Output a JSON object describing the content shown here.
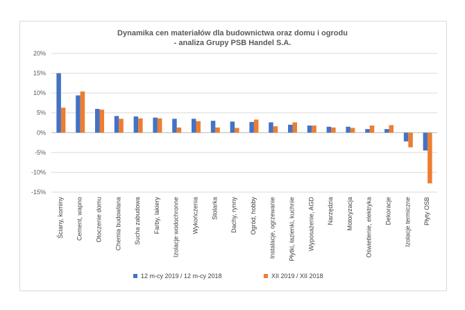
{
  "chart_data": {
    "type": "bar",
    "title_lines": [
      "Dynamika cen materiałów dla budownictwa oraz domu i ogrodu",
      "- analiza Grupy PSB Handel S.A."
    ],
    "categories": [
      "Ściany, kominy",
      "Cement, wapno",
      "Otoczenie domu",
      "Chemia budowlana",
      "Sucha zabudowa",
      "Farby, lakiery",
      "Izolacje wodochronne",
      "Wykończenia",
      "Stolarka",
      "Dachy, rynny",
      "Ogród, hobby",
      "Instalacje, ogrzewanie",
      "Płytki, łazienki, kuchnie",
      "Wyposażenie, AGD",
      "Narzędzia",
      "Motoryzacja",
      "Oświetlenie, elektryka",
      "Dekoracje",
      "Izolacje termiczne",
      "Płyty OSB"
    ],
    "series": [
      {
        "name": "12 m-cy 2019 / 12 m-cy 2018",
        "color": "#4472c4",
        "values": [
          15.0,
          9.4,
          6.0,
          4.2,
          4.1,
          3.8,
          3.5,
          3.5,
          3.0,
          2.8,
          2.7,
          2.6,
          2.0,
          1.8,
          1.5,
          1.5,
          0.9,
          0.9,
          -2.2,
          -4.5
        ]
      },
      {
        "name": "XII 2019 / XII 2018",
        "color": "#ed7d31",
        "values": [
          6.3,
          10.4,
          5.8,
          3.5,
          3.6,
          3.6,
          1.3,
          2.9,
          1.3,
          1.2,
          3.3,
          1.6,
          2.6,
          1.8,
          1.3,
          1.2,
          1.8,
          1.9,
          -3.7,
          -12.8
        ]
      }
    ],
    "yticks": [
      "20%",
      "15%",
      "10%",
      "5%",
      "0%",
      "-5%",
      "-10%",
      "-15%"
    ],
    "ylim": [
      -15,
      20
    ],
    "grid": true,
    "legend": "bottom"
  }
}
